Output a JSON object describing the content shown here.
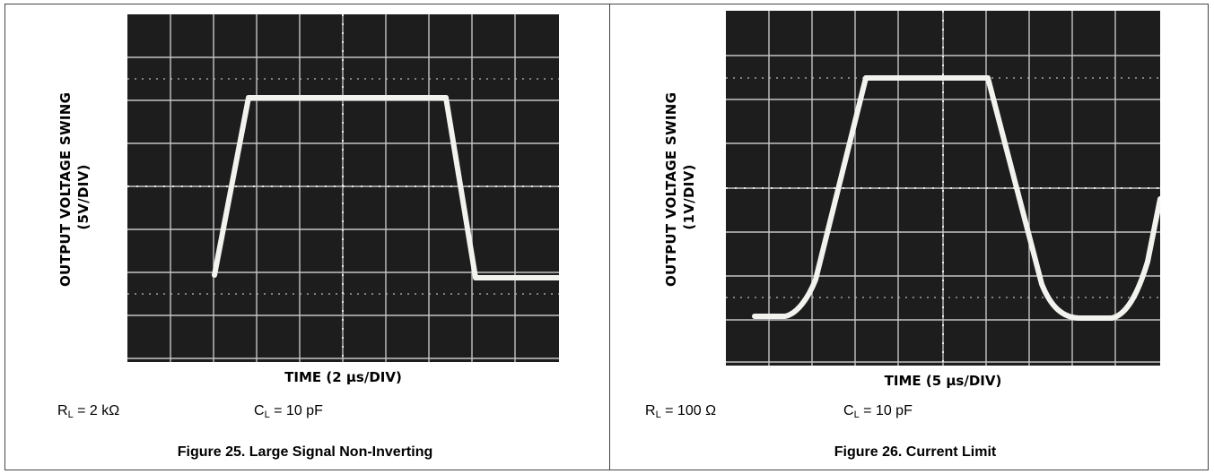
{
  "figures": [
    {
      "ylabel_line1": "OUTPUT VOLTAGE SWING",
      "ylabel_line2": "(5V/DIV)",
      "xlabel": "TIME (2 μs/DIV)",
      "rl_main": "R",
      "rl_sub": "L",
      "rl_value": " = 2 kΩ",
      "cl_main": "C",
      "cl_sub": "L",
      "cl_value": " = 10 pF",
      "caption": "Figure 25. Large Signal Non-Inverting"
    },
    {
      "ylabel_line1": "OUTPUT VOLTAGE SWING",
      "ylabel_line2": "(1V/DIV)",
      "xlabel": "TIME (5 μs/DIV)",
      "rl_main": "R",
      "rl_sub": "L",
      "rl_value": " = 100 Ω",
      "cl_main": "C",
      "cl_sub": "L",
      "cl_value": " = 10 pF",
      "caption": "Figure 26. Current Limit"
    }
  ],
  "colors": {
    "screen": "#1d1d1d",
    "grid": "#d8d8d8",
    "trace": "#f2f2ee"
  }
}
